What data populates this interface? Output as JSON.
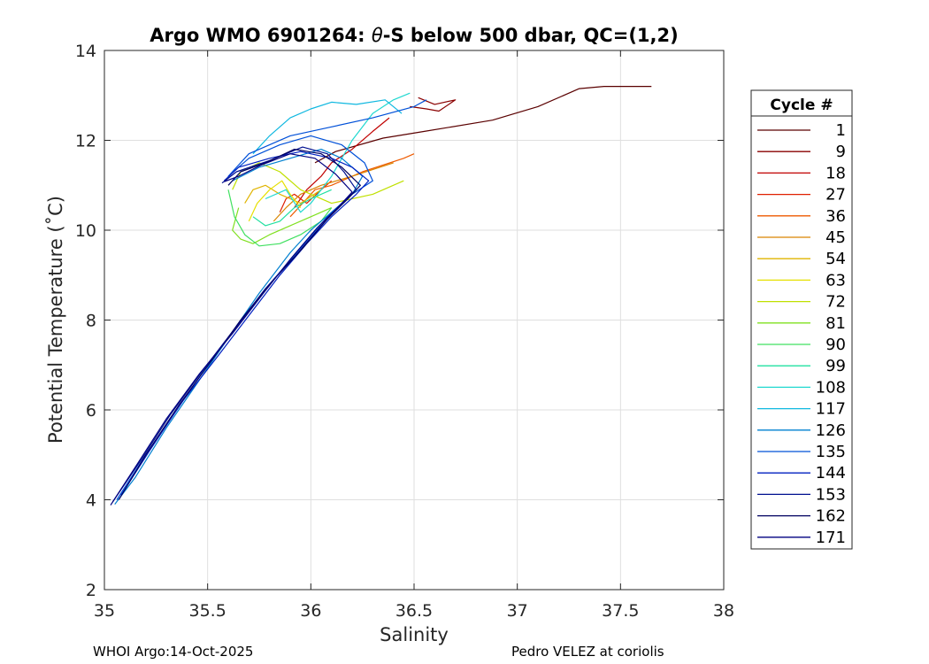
{
  "chart_data": {
    "type": "line",
    "title": "Argo WMO 6901264: θ-S below 500 dbar,  QC=(1,2)",
    "title_prefix": "Argo WMO 6901264: ",
    "title_theta": "θ",
    "title_suffix": "-S below 500 dbar,  QC=(1,2)",
    "xlabel": "Salinity",
    "ylabel": "Potential Temperature (˚C)",
    "xlim": [
      35,
      38
    ],
    "ylim": [
      2,
      14
    ],
    "xticks": [
      35,
      35.5,
      36,
      36.5,
      37,
      37.5,
      38
    ],
    "xtick_labels": [
      "35",
      "35.5",
      "36",
      "36.5",
      "37",
      "37.5",
      "38"
    ],
    "yticks": [
      2,
      4,
      6,
      8,
      10,
      12,
      14
    ],
    "ytick_labels": [
      "2",
      "4",
      "6",
      "8",
      "10",
      "12",
      "14"
    ],
    "grid": true,
    "legend": {
      "title": "Cycle #",
      "placement": "outside-right",
      "entries": [
        {
          "label": "1",
          "color": "#5a0000"
        },
        {
          "label": "9",
          "color": "#8a0000"
        },
        {
          "label": "18",
          "color": "#c00000"
        },
        {
          "label": "27",
          "color": "#e02000"
        },
        {
          "label": "36",
          "color": "#ee5a00"
        },
        {
          "label": "45",
          "color": "#d98500"
        },
        {
          "label": "54",
          "color": "#e0b400"
        },
        {
          "label": "63",
          "color": "#e6e000"
        },
        {
          "label": "72",
          "color": "#c0e000"
        },
        {
          "label": "81",
          "color": "#80e020"
        },
        {
          "label": "90",
          "color": "#40e060"
        },
        {
          "label": "99",
          "color": "#20e0a0"
        },
        {
          "label": "108",
          "color": "#20d8d0"
        },
        {
          "label": "117",
          "color": "#10b8e0"
        },
        {
          "label": "126",
          "color": "#0080d0"
        },
        {
          "label": "135",
          "color": "#0050d8"
        },
        {
          "label": "144",
          "color": "#0020c0"
        },
        {
          "label": "153",
          "color": "#001090"
        },
        {
          "label": "162",
          "color": "#000060"
        },
        {
          "label": "171",
          "color": "#000080"
        }
      ]
    },
    "series": [
      {
        "name": "1",
        "color": "#5a0000",
        "x": [
          36.02,
          36.12,
          36.35,
          36.55,
          36.88,
          37.1,
          37.3,
          37.42,
          37.65
        ],
        "y": [
          11.5,
          11.75,
          12.05,
          12.2,
          12.45,
          12.75,
          13.15,
          13.2,
          13.2
        ]
      },
      {
        "name": "9",
        "color": "#8a0000",
        "x": [
          36.52,
          36.6,
          36.7,
          36.62,
          36.56,
          36.48
        ],
        "y": [
          12.95,
          12.8,
          12.9,
          12.65,
          12.7,
          12.75
        ]
      },
      {
        "name": "18",
        "color": "#c00000",
        "x": [
          35.92,
          35.98,
          36.05,
          36.1,
          36.2,
          36.3,
          36.38
        ],
        "y": [
          10.5,
          10.9,
          11.2,
          11.5,
          11.8,
          12.2,
          12.5
        ]
      },
      {
        "name": "27",
        "color": "#e02000",
        "x": [
          35.85,
          35.88,
          35.92,
          35.98,
          36.05,
          36.1
        ],
        "y": [
          10.4,
          10.7,
          10.8,
          10.6,
          10.9,
          11.1
        ]
      },
      {
        "name": "36",
        "color": "#ee5a00",
        "x": [
          35.9,
          35.96,
          36.02,
          36.1,
          36.25,
          36.45,
          36.5
        ],
        "y": [
          10.3,
          10.6,
          10.9,
          11.0,
          11.3,
          11.6,
          11.7
        ]
      },
      {
        "name": "45",
        "color": "#d98500",
        "x": [
          35.82,
          35.88,
          35.95,
          36.05,
          36.2,
          36.4
        ],
        "y": [
          10.2,
          10.5,
          10.8,
          11.0,
          11.2,
          11.5
        ]
      },
      {
        "name": "54",
        "color": "#e0b400",
        "x": [
          35.68,
          35.72,
          35.78,
          35.85,
          35.95,
          36.05
        ],
        "y": [
          10.6,
          10.9,
          11.0,
          10.8,
          10.6,
          10.9
        ]
      },
      {
        "name": "63",
        "color": "#e6e000",
        "x": [
          35.7,
          35.74,
          35.8,
          35.86,
          35.9,
          35.95
        ],
        "y": [
          10.2,
          10.6,
          10.9,
          11.1,
          10.8,
          10.5
        ]
      },
      {
        "name": "72",
        "color": "#c0e000",
        "x": [
          35.62,
          35.66,
          35.75,
          35.85,
          35.95,
          36.1,
          36.3,
          36.45
        ],
        "y": [
          10.9,
          11.3,
          11.5,
          11.3,
          10.9,
          10.6,
          10.8,
          11.1
        ]
      },
      {
        "name": "81",
        "color": "#80e020",
        "x": [
          35.65,
          35.62,
          35.66,
          35.72,
          35.8,
          35.9,
          36.0,
          36.1
        ],
        "y": [
          10.5,
          10.0,
          9.8,
          9.7,
          9.9,
          10.1,
          10.3,
          10.5
        ]
      },
      {
        "name": "90",
        "color": "#40e060",
        "x": [
          35.6,
          35.63,
          35.68,
          35.75,
          35.85,
          35.95,
          36.05,
          36.1
        ],
        "y": [
          10.9,
          10.3,
          9.9,
          9.65,
          9.7,
          9.9,
          10.2,
          10.5
        ]
      },
      {
        "name": "99",
        "color": "#20e0a0",
        "x": [
          35.72,
          35.78,
          35.85,
          35.92,
          36.0,
          36.1
        ],
        "y": [
          10.3,
          10.1,
          10.2,
          10.5,
          10.7,
          10.9
        ]
      },
      {
        "name": "108",
        "color": "#20d8d0",
        "x": [
          35.78,
          35.88,
          35.95,
          36.0,
          36.1,
          36.2,
          36.3,
          36.4,
          36.48
        ],
        "y": [
          10.7,
          10.9,
          10.4,
          10.6,
          11.2,
          12.0,
          12.6,
          12.9,
          13.05
        ]
      },
      {
        "name": "117",
        "color": "#10b8e0",
        "x": [
          35.72,
          35.8,
          35.9,
          36.0,
          36.1,
          36.22,
          36.36,
          36.44
        ],
        "y": [
          11.7,
          12.1,
          12.5,
          12.7,
          12.85,
          12.8,
          12.9,
          12.6
        ]
      },
      {
        "name": "126",
        "color": "#0080d0",
        "x": [
          35.05,
          35.15,
          35.3,
          35.45,
          35.6,
          35.75,
          35.9,
          36.0,
          36.1,
          36.2,
          36.25,
          36.15,
          36.05,
          35.9,
          35.75,
          35.62
        ],
        "y": [
          3.9,
          4.5,
          5.6,
          6.6,
          7.6,
          8.6,
          9.5,
          10.0,
          10.4,
          10.8,
          11.2,
          11.6,
          11.8,
          11.6,
          11.4,
          11.1
        ]
      },
      {
        "name": "135",
        "color": "#0050d8",
        "x": [
          35.06,
          35.2,
          35.35,
          35.5,
          35.65,
          35.8,
          35.95,
          36.08,
          36.2,
          36.3,
          36.26,
          36.15,
          36.0,
          35.85,
          35.7,
          35.6,
          35.7,
          35.9,
          36.1,
          36.3,
          36.5,
          36.56
        ],
        "y": [
          4.0,
          5.0,
          6.0,
          7.0,
          7.9,
          8.8,
          9.6,
          10.3,
          10.8,
          11.1,
          11.5,
          11.9,
          12.1,
          11.9,
          11.6,
          11.2,
          11.7,
          12.1,
          12.3,
          12.5,
          12.75,
          12.9
        ]
      },
      {
        "name": "144",
        "color": "#0020c0",
        "x": [
          35.08,
          35.22,
          35.38,
          35.55,
          35.7,
          35.85,
          35.98,
          36.1,
          36.22,
          36.28,
          36.2,
          36.1,
          35.95,
          35.8,
          35.65,
          35.58
        ],
        "y": [
          4.1,
          5.1,
          6.2,
          7.2,
          8.1,
          9.0,
          9.7,
          10.3,
          10.8,
          11.1,
          11.4,
          11.6,
          11.75,
          11.6,
          11.4,
          11.1
        ]
      },
      {
        "name": "153",
        "color": "#001090",
        "x": [
          35.04,
          35.18,
          35.32,
          35.48,
          35.63,
          35.78,
          35.92,
          36.05,
          36.15,
          36.22,
          36.16,
          36.08,
          35.96,
          35.8,
          35.64,
          35.57
        ],
        "y": [
          3.95,
          4.9,
          5.9,
          6.9,
          7.8,
          8.7,
          9.4,
          10.1,
          10.6,
          10.9,
          11.3,
          11.7,
          11.85,
          11.55,
          11.3,
          11.05
        ]
      },
      {
        "name": "162",
        "color": "#000060",
        "x": [
          35.07,
          35.2,
          35.36,
          35.52,
          35.66,
          35.82,
          35.96,
          36.08,
          36.18,
          36.24,
          36.15,
          36.05,
          35.92,
          35.78,
          35.66,
          35.6
        ],
        "y": [
          4.0,
          5.0,
          6.1,
          7.1,
          8.0,
          8.9,
          9.6,
          10.25,
          10.7,
          11.0,
          11.4,
          11.7,
          11.8,
          11.5,
          11.3,
          11.0
        ]
      },
      {
        "name": "171",
        "color": "#000080",
        "x": [
          35.03,
          35.16,
          35.3,
          35.46,
          35.62,
          35.77,
          35.9,
          36.03,
          36.14,
          36.2,
          36.12,
          36.02,
          35.9,
          35.76,
          35.65,
          35.58
        ],
        "y": [
          3.88,
          4.8,
          5.8,
          6.8,
          7.7,
          8.6,
          9.35,
          10.05,
          10.55,
          10.85,
          11.25,
          11.6,
          11.7,
          11.45,
          11.2,
          11.08
        ]
      }
    ]
  },
  "footer": {
    "left": "WHOI Argo:14-Oct-2025",
    "right": "Pedro VELEZ at coriolis"
  }
}
